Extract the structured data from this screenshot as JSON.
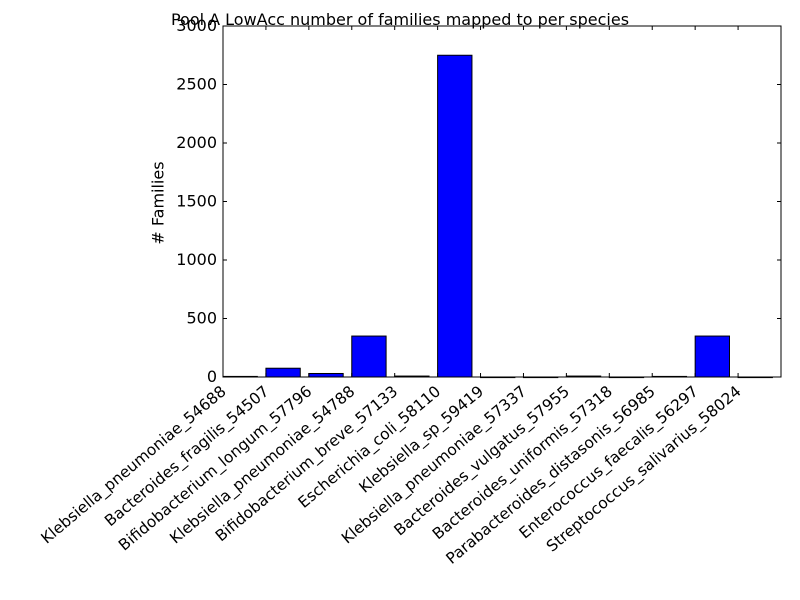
{
  "chart_data": {
    "type": "bar",
    "title": "Pool A LowAcc number of families mapped to per species",
    "xlabel": "",
    "ylabel": "# Families",
    "ylim": [
      0,
      3000
    ],
    "yticks": [
      0,
      500,
      1000,
      1500,
      2000,
      2500,
      3000
    ],
    "grid": false,
    "legend": "none",
    "categories": [
      "Klebsiella_pneumoniae_54688",
      "Bacteroides_fragilis_54507",
      "Bifidobacterium_longum_57796",
      "Klebsiella_pneumoniae_54788",
      "Bifidobacterium_breve_57133",
      "Escherichia_coli_58110",
      "Klebsiella_sp_59419",
      "Klebsiella_pneumoniae_57337",
      "Bacteroides_vulgatus_57955",
      "Bacteroides_uniformis_57318",
      "Parabacteroides_distasonis_56985",
      "Enterococcus_faecalis_56297",
      "Streptococcus_salivarius_58024"
    ],
    "values": [
      5,
      75,
      30,
      350,
      8,
      2750,
      0,
      0,
      8,
      0,
      5,
      350,
      0
    ],
    "bar_color": "#0000ff",
    "edge_color": "#000000"
  }
}
